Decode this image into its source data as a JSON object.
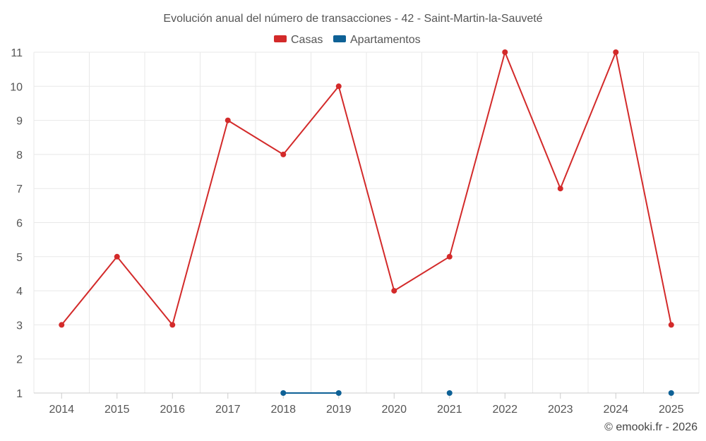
{
  "chart_data": {
    "type": "line",
    "title": "Evolución anual del número de transacciones - 42 - Saint-Martin-la-Sauveté",
    "categories": [
      "2014",
      "2015",
      "2016",
      "2017",
      "2018",
      "2019",
      "2020",
      "2021",
      "2022",
      "2023",
      "2024",
      "2025"
    ],
    "series": [
      {
        "name": "Casas",
        "color": "#d32a2a",
        "values": [
          3,
          5,
          3,
          9,
          8,
          10,
          4,
          5,
          11,
          7,
          11,
          3
        ]
      },
      {
        "name": "Apartamentos",
        "color": "#0e6196",
        "values": [
          null,
          null,
          null,
          null,
          1,
          1,
          null,
          1,
          null,
          null,
          null,
          1
        ]
      }
    ],
    "ylim": [
      1,
      11
    ],
    "yticks": [
      1,
      2,
      3,
      4,
      5,
      6,
      7,
      8,
      9,
      10,
      11
    ],
    "grid": true,
    "legend": "top-center",
    "xlabel": "",
    "ylabel": ""
  },
  "credit": "© emooki.fr - 2026"
}
